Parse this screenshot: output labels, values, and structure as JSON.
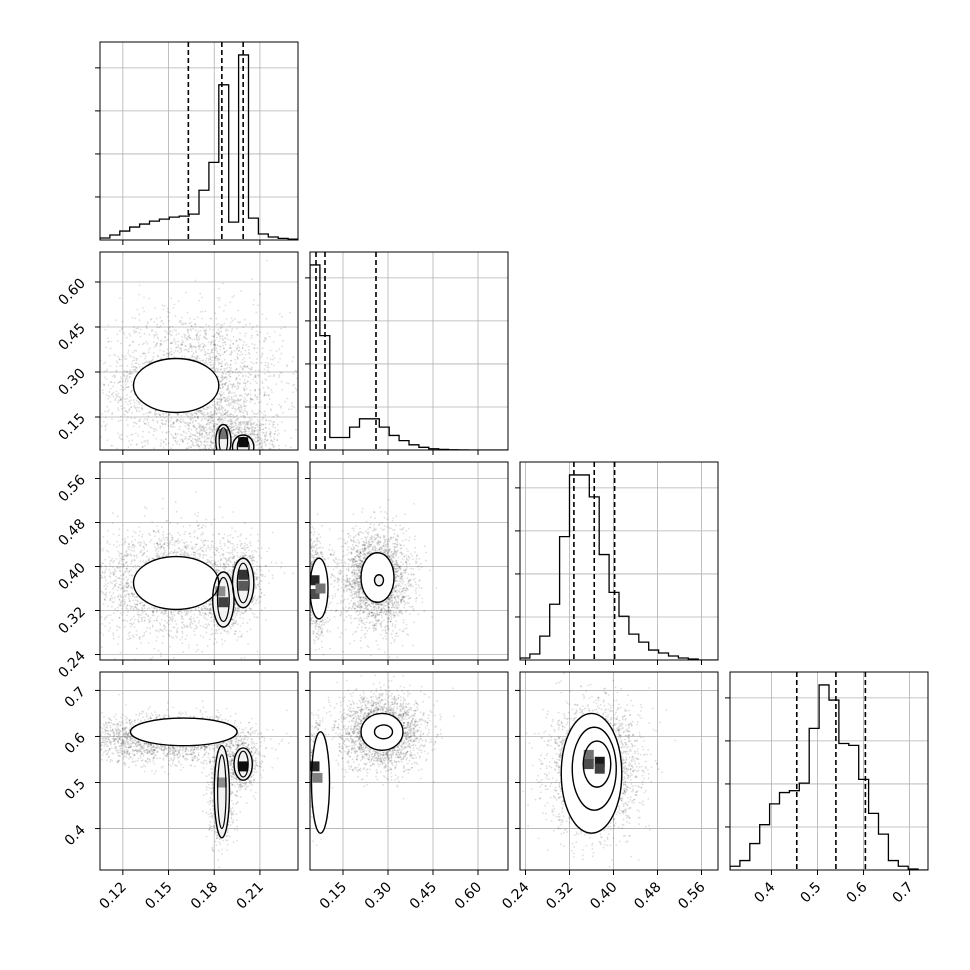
{
  "chart_data": {
    "type": "corner",
    "variables": [
      {
        "ticks": [
          0.12,
          0.15,
          0.18,
          0.21
        ],
        "tick_labels": [
          "0.12",
          "0.15",
          "0.18",
          "0.21"
        ],
        "range": [
          0.105,
          0.235
        ],
        "quantiles": [
          0.163,
          0.185,
          0.199
        ],
        "hist_edges": [
          0.105,
          0.1115,
          0.118,
          0.1245,
          0.131,
          0.1375,
          0.144,
          0.1505,
          0.157,
          0.1635,
          0.17,
          0.1765,
          0.183,
          0.1895,
          0.196,
          0.2025,
          0.209,
          0.2155,
          0.222,
          0.2285,
          0.235
        ],
        "hist_counts": [
          0.01,
          0.025,
          0.045,
          0.065,
          0.08,
          0.095,
          0.105,
          0.115,
          0.12,
          0.13,
          0.25,
          0.39,
          0.78,
          0.09,
          0.93,
          0.11,
          0.03,
          0.015,
          0.008,
          0.004
        ]
      },
      {
        "ticks": [
          0.15,
          0.3,
          0.45,
          0.6
        ],
        "tick_labels": [
          "0.15",
          "0.30",
          "0.45",
          "0.60"
        ],
        "range": [
          0.04,
          0.7
        ],
        "quantiles": [
          0.06,
          0.09,
          0.26
        ],
        "hist_edges": [
          0.04,
          0.073,
          0.106,
          0.139,
          0.172,
          0.205,
          0.238,
          0.271,
          0.304,
          0.337,
          0.37,
          0.403,
          0.436,
          0.469,
          0.502,
          0.535,
          0.568,
          0.601,
          0.634,
          0.667,
          0.7
        ],
        "hist_counts": [
          0.89,
          0.55,
          0.06,
          0.06,
          0.11,
          0.15,
          0.15,
          0.11,
          0.07,
          0.045,
          0.025,
          0.013,
          0.006,
          0.003,
          0.001,
          0.0005,
          0,
          0,
          0,
          0
        ]
      },
      {
        "ticks": [
          0.24,
          0.32,
          0.4,
          0.48,
          0.56
        ],
        "tick_labels": [
          "0.24",
          "0.32",
          "0.40",
          "0.48",
          "0.56"
        ],
        "range": [
          0.23,
          0.59
        ],
        "quantiles": [
          0.328,
          0.365,
          0.402
        ],
        "hist_edges": [
          0.23,
          0.248,
          0.266,
          0.284,
          0.302,
          0.32,
          0.338,
          0.356,
          0.374,
          0.392,
          0.41,
          0.428,
          0.446,
          0.464,
          0.482,
          0.5,
          0.518,
          0.536,
          0.554,
          0.572,
          0.59
        ],
        "hist_counts": [
          0.01,
          0.03,
          0.12,
          0.28,
          0.62,
          0.93,
          0.93,
          0.82,
          0.53,
          0.34,
          0.22,
          0.13,
          0.09,
          0.05,
          0.035,
          0.02,
          0.01,
          0.005,
          0,
          0
        ]
      },
      {
        "ticks": [
          0.4,
          0.5,
          0.6,
          0.7
        ],
        "tick_labels": [
          "0.4",
          "0.5",
          "0.6",
          "0.7"
        ],
        "range": [
          0.31,
          0.74
        ],
        "quantiles": [
          0.455,
          0.54,
          0.604
        ],
        "hist_edges": [
          0.31,
          0.3315,
          0.353,
          0.3745,
          0.396,
          0.4175,
          0.439,
          0.4605,
          0.482,
          0.5035,
          0.525,
          0.5465,
          0.568,
          0.5895,
          0.611,
          0.6325,
          0.654,
          0.6755,
          0.697,
          0.7185,
          0.74
        ],
        "hist_counts": [
          0.02,
          0.05,
          0.14,
          0.24,
          0.35,
          0.41,
          0.42,
          0.46,
          0.75,
          0.98,
          0.9,
          0.67,
          0.66,
          0.48,
          0.3,
          0.19,
          0.05,
          0.02,
          0.005,
          0
        ]
      }
    ],
    "pairs": [
      {
        "x": 0,
        "y": 1,
        "blobs": [
          {
            "cx": 0.165,
            "cy": 0.26,
            "sx": 0.03,
            "sy": 0.12,
            "n": 2600
          },
          {
            "cx": 0.186,
            "cy": 0.08,
            "sx": 0.015,
            "sy": 0.05,
            "n": 500
          },
          {
            "cx": 0.199,
            "cy": 0.07,
            "sx": 0.012,
            "sy": 0.04,
            "n": 500
          }
        ],
        "contours": [
          {
            "cx": 0.155,
            "cy": 0.255,
            "rx": 0.028,
            "ry": 0.09
          },
          {
            "cx": 0.186,
            "cy": 0.07,
            "rx": 0.005,
            "ry": 0.055
          },
          {
            "cx": 0.199,
            "cy": 0.05,
            "rx": 0.007,
            "ry": 0.04
          }
        ],
        "dark": [
          {
            "x": 0.186,
            "y": 0.093,
            "shade": 0.45
          },
          {
            "x": 0.199,
            "y": 0.066,
            "shade": 0.05
          }
        ]
      },
      {
        "x": 0,
        "y": 2,
        "blobs": [
          {
            "cx": 0.15,
            "cy": 0.37,
            "sx": 0.025,
            "sy": 0.05,
            "n": 2300
          },
          {
            "cx": 0.186,
            "cy": 0.345,
            "sx": 0.006,
            "sy": 0.03,
            "n": 600
          },
          {
            "cx": 0.199,
            "cy": 0.375,
            "sx": 0.006,
            "sy": 0.03,
            "n": 600
          }
        ],
        "contours": [
          {
            "cx": 0.155,
            "cy": 0.37,
            "rx": 0.028,
            "ry": 0.048
          },
          {
            "cx": 0.186,
            "cy": 0.34,
            "rx": 0.007,
            "ry": 0.05
          },
          {
            "cx": 0.199,
            "cy": 0.37,
            "rx": 0.007,
            "ry": 0.045
          }
        ],
        "dark": [
          {
            "x": 0.184,
            "y": 0.355,
            "shade": 0.55
          },
          {
            "x": 0.186,
            "y": 0.335,
            "shade": 0.25
          },
          {
            "x": 0.199,
            "y": 0.385,
            "shade": 0.2
          },
          {
            "x": 0.199,
            "y": 0.365,
            "shade": 0.35
          }
        ]
      },
      {
        "x": 0,
        "y": 3,
        "blobs": [
          {
            "cx": 0.15,
            "cy": 0.595,
            "sx": 0.028,
            "sy": 0.025,
            "n": 2200
          },
          {
            "cx": 0.185,
            "cy": 0.47,
            "sx": 0.004,
            "sy": 0.05,
            "n": 700
          },
          {
            "cx": 0.199,
            "cy": 0.54,
            "sx": 0.005,
            "sy": 0.025,
            "n": 600
          }
        ],
        "contours": [
          {
            "cx": 0.16,
            "cy": 0.61,
            "rx": 0.035,
            "ry": 0.03
          },
          {
            "cx": 0.185,
            "cy": 0.48,
            "rx": 0.005,
            "ry": 0.1
          },
          {
            "cx": 0.199,
            "cy": 0.54,
            "rx": 0.006,
            "ry": 0.035
          }
        ],
        "dark": [
          {
            "x": 0.185,
            "y": 0.5,
            "shade": 0.55
          },
          {
            "x": 0.199,
            "y": 0.535,
            "shade": 0.05
          }
        ]
      },
      {
        "x": 1,
        "y": 2,
        "blobs": [
          {
            "cx": 0.26,
            "cy": 0.375,
            "sx": 0.06,
            "sy": 0.045,
            "n": 2400
          },
          {
            "cx": 0.065,
            "cy": 0.36,
            "sx": 0.015,
            "sy": 0.04,
            "n": 900
          }
        ],
        "contours": [
          {
            "cx": 0.265,
            "cy": 0.38,
            "rx": 0.055,
            "ry": 0.045
          },
          {
            "cx": 0.27,
            "cy": 0.375,
            "rx": 0.015,
            "ry": 0.01
          },
          {
            "cx": 0.07,
            "cy": 0.36,
            "rx": 0.03,
            "ry": 0.055
          }
        ],
        "dark": [
          {
            "x": 0.055,
            "y": 0.375,
            "shade": 0.15
          },
          {
            "x": 0.055,
            "y": 0.35,
            "shade": 0.3
          },
          {
            "x": 0.075,
            "y": 0.36,
            "shade": 0.45
          }
        ]
      },
      {
        "x": 1,
        "y": 3,
        "blobs": [
          {
            "cx": 0.28,
            "cy": 0.61,
            "sx": 0.07,
            "sy": 0.04,
            "n": 2300
          },
          {
            "cx": 0.065,
            "cy": 0.52,
            "sx": 0.012,
            "sy": 0.05,
            "n": 900
          }
        ],
        "contours": [
          {
            "cx": 0.28,
            "cy": 0.61,
            "rx": 0.07,
            "ry": 0.04
          },
          {
            "cx": 0.285,
            "cy": 0.61,
            "rx": 0.03,
            "ry": 0.015
          },
          {
            "cx": 0.075,
            "cy": 0.5,
            "rx": 0.03,
            "ry": 0.11
          }
        ],
        "dark": [
          {
            "x": 0.055,
            "y": 0.535,
            "shade": 0.15
          },
          {
            "x": 0.065,
            "y": 0.51,
            "shade": 0.5
          }
        ]
      },
      {
        "x": 2,
        "y": 3,
        "blobs": [
          {
            "cx": 0.365,
            "cy": 0.53,
            "sx": 0.04,
            "sy": 0.07,
            "n": 2800
          }
        ],
        "contours": [
          {
            "cx": 0.36,
            "cy": 0.52,
            "rx": 0.055,
            "ry": 0.13
          },
          {
            "cx": 0.365,
            "cy": 0.53,
            "rx": 0.04,
            "ry": 0.09
          },
          {
            "cx": 0.37,
            "cy": 0.54,
            "rx": 0.025,
            "ry": 0.05
          }
        ],
        "dark": [
          {
            "x": 0.355,
            "y": 0.56,
            "shade": 0.45
          },
          {
            "x": 0.375,
            "y": 0.545,
            "shade": 0.1
          },
          {
            "x": 0.355,
            "y": 0.54,
            "shade": 0.3
          },
          {
            "x": 0.375,
            "y": 0.53,
            "shade": 0.25
          }
        ]
      }
    ]
  }
}
